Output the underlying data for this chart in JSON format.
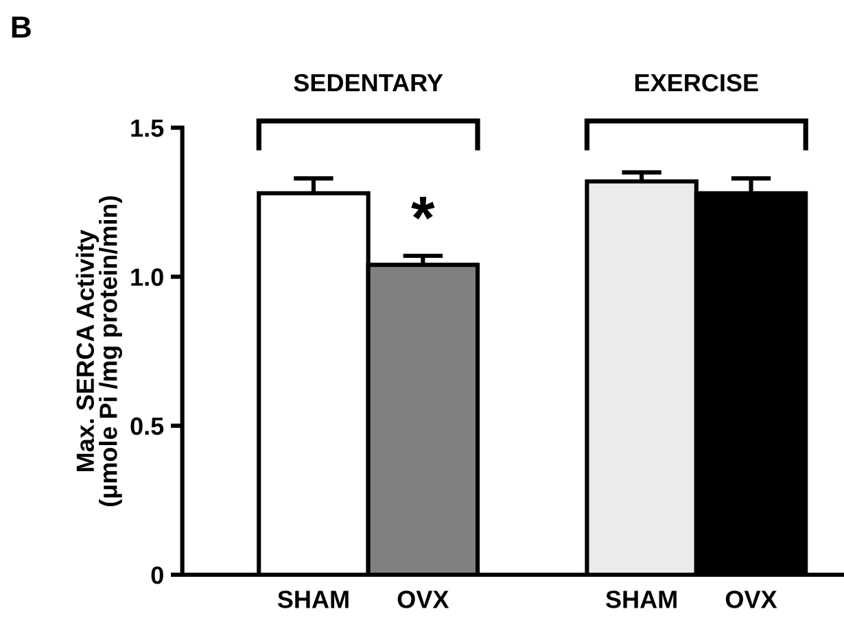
{
  "chart_data": {
    "type": "bar",
    "categories": [
      "SHAM",
      "OVX",
      null,
      "SHAM",
      "OVX"
    ],
    "values": [
      1.28,
      1.04,
      null,
      1.32,
      1.28
    ],
    "errors": [
      [
        1.28,
        1.33
      ],
      [
        1.04,
        1.07
      ],
      null,
      [
        1.32,
        1.35
      ],
      [
        1.28,
        1.33
      ]
    ],
    "colors": [
      "#ffffff",
      "#808080",
      "#ffffff",
      "#ebebeb",
      "#000000"
    ],
    "ylabel": "Max. SERCA Activity\n(μmole Pi /mg protein/min)",
    "ylim": [
      0,
      1.5
    ],
    "yticks": [
      0,
      {
        "value": 0.5,
        "label": "0.5"
      },
      {
        "value": 1.0,
        "label": "1.0"
      },
      {
        "value": 1.5,
        "label": "1.5"
      }
    ],
    "annotations": [
      "B",
      "SEDENTARY",
      "EXERCISE",
      "*"
    ],
    "grid": false
  }
}
